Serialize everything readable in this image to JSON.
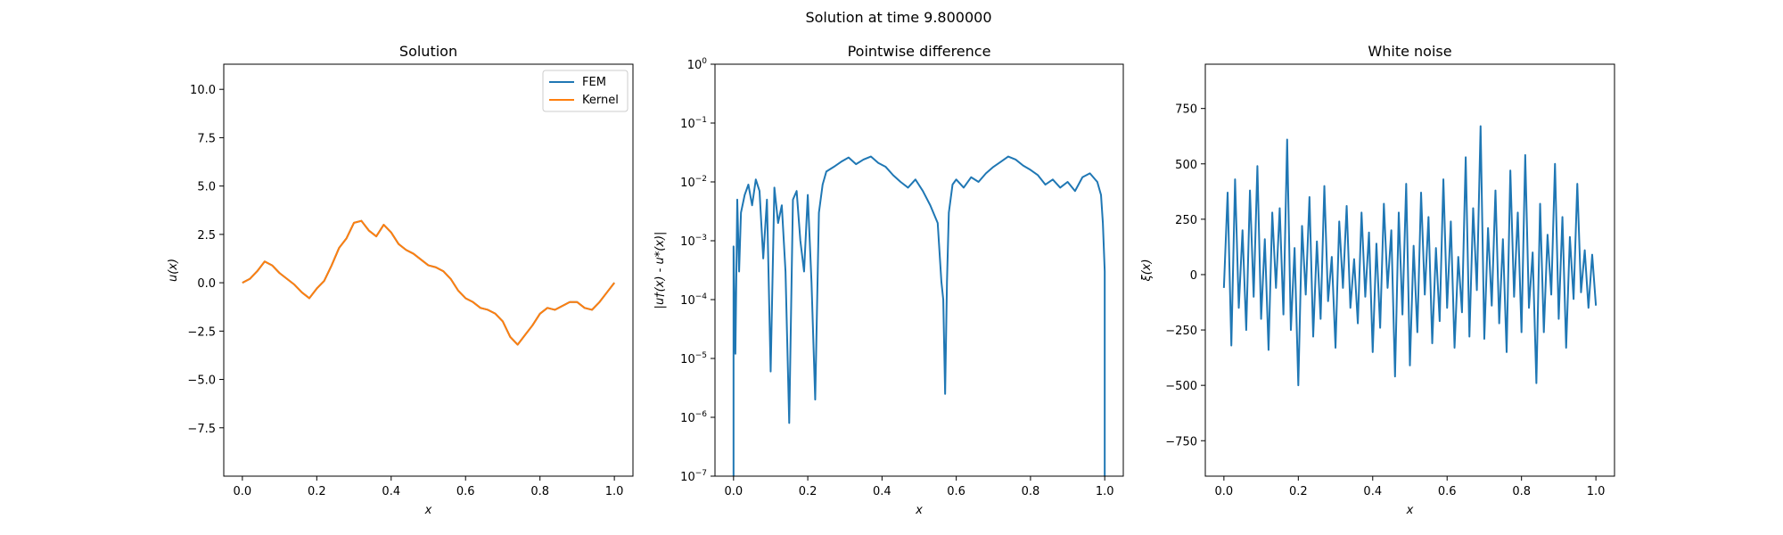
{
  "figure": {
    "suptitle": "Solution at time 9.800000"
  },
  "chart_data": [
    {
      "type": "line",
      "title": "Solution",
      "xlabel": "x",
      "ylabel": "u(x)",
      "xlim": [
        -0.05,
        1.05
      ],
      "ylim": [
        -10,
        11.3
      ],
      "xticks": [
        0.0,
        0.2,
        0.4,
        0.6,
        0.8,
        1.0
      ],
      "xticklabels": [
        "0.0",
        "0.2",
        "0.4",
        "0.6",
        "0.8",
        "1.0"
      ],
      "yticks": [
        -7.5,
        -5.0,
        -2.5,
        0.0,
        2.5,
        5.0,
        7.5,
        10.0
      ],
      "yticklabels": [
        "−7.5",
        "−5.0",
        "−2.5",
        "0.0",
        "2.5",
        "5.0",
        "7.5",
        "10.0"
      ],
      "legend": {
        "placement": "upper-right",
        "entries": [
          "FEM",
          "Kernel"
        ]
      },
      "series": [
        {
          "name": "FEM",
          "color": "#1f77b4",
          "x": [
            0.0,
            0.02,
            0.04,
            0.06,
            0.08,
            0.1,
            0.12,
            0.14,
            0.16,
            0.18,
            0.2,
            0.22,
            0.24,
            0.26,
            0.28,
            0.3,
            0.32,
            0.34,
            0.36,
            0.38,
            0.4,
            0.42,
            0.44,
            0.46,
            0.48,
            0.5,
            0.52,
            0.54,
            0.56,
            0.58,
            0.6,
            0.62,
            0.64,
            0.66,
            0.68,
            0.7,
            0.72,
            0.74,
            0.76,
            0.78,
            0.8,
            0.82,
            0.84,
            0.86,
            0.88,
            0.9,
            0.92,
            0.94,
            0.96,
            0.98,
            1.0
          ],
          "y": [
            0.0,
            0.2,
            0.6,
            1.1,
            0.9,
            0.5,
            0.2,
            -0.1,
            -0.5,
            -0.8,
            -0.3,
            0.1,
            0.9,
            1.8,
            2.3,
            3.1,
            3.2,
            2.7,
            2.4,
            3.0,
            2.6,
            2.0,
            1.7,
            1.5,
            1.2,
            0.9,
            0.8,
            0.6,
            0.2,
            -0.4,
            -0.8,
            -1.0,
            -1.3,
            -1.4,
            -1.6,
            -2.0,
            -2.8,
            -3.2,
            -2.7,
            -2.2,
            -1.6,
            -1.3,
            -1.4,
            -1.2,
            -1.0,
            -1.0,
            -1.3,
            -1.4,
            -1.0,
            -0.5,
            0.0
          ]
        },
        {
          "name": "Kernel",
          "color": "#ff7f0e",
          "x": [
            0.0,
            0.02,
            0.04,
            0.06,
            0.08,
            0.1,
            0.12,
            0.14,
            0.16,
            0.18,
            0.2,
            0.22,
            0.24,
            0.26,
            0.28,
            0.3,
            0.32,
            0.34,
            0.36,
            0.38,
            0.4,
            0.42,
            0.44,
            0.46,
            0.48,
            0.5,
            0.52,
            0.54,
            0.56,
            0.58,
            0.6,
            0.62,
            0.64,
            0.66,
            0.68,
            0.7,
            0.72,
            0.74,
            0.76,
            0.78,
            0.8,
            0.82,
            0.84,
            0.86,
            0.88,
            0.9,
            0.92,
            0.94,
            0.96,
            0.98,
            1.0
          ],
          "y": [
            0.0,
            0.2,
            0.6,
            1.1,
            0.9,
            0.5,
            0.2,
            -0.1,
            -0.5,
            -0.8,
            -0.3,
            0.1,
            0.9,
            1.8,
            2.3,
            3.1,
            3.2,
            2.7,
            2.4,
            3.0,
            2.6,
            2.0,
            1.7,
            1.5,
            1.2,
            0.9,
            0.8,
            0.6,
            0.2,
            -0.4,
            -0.8,
            -1.0,
            -1.3,
            -1.4,
            -1.6,
            -2.0,
            -2.8,
            -3.2,
            -2.7,
            -2.2,
            -1.6,
            -1.3,
            -1.4,
            -1.2,
            -1.0,
            -1.0,
            -1.3,
            -1.4,
            -1.0,
            -0.5,
            0.0
          ]
        }
      ]
    },
    {
      "type": "line",
      "title": "Pointwise difference",
      "xlabel": "x",
      "ylabel": "|u†(x) - u*(x)|",
      "yscale": "log",
      "xlim": [
        -0.05,
        1.05
      ],
      "ylim": [
        1e-07,
        1
      ],
      "xticks": [
        0.0,
        0.2,
        0.4,
        0.6,
        0.8,
        1.0
      ],
      "xticklabels": [
        "0.0",
        "0.2",
        "0.4",
        "0.6",
        "0.8",
        "1.0"
      ],
      "yticks": [
        1e-07,
        1e-06,
        1e-05,
        0.0001,
        0.001,
        0.01,
        0.1,
        1
      ],
      "yticklabels": [
        [
          "10",
          "−7"
        ],
        [
          "10",
          "−6"
        ],
        [
          "10",
          "−5"
        ],
        [
          "10",
          "−4"
        ],
        [
          "10",
          "−3"
        ],
        [
          "10",
          "−2"
        ],
        [
          "10",
          "−1"
        ],
        [
          "10",
          "0"
        ]
      ],
      "series": [
        {
          "color": "#1f77b4",
          "x": [
            0.0,
            0.0,
            0.005,
            0.01,
            0.015,
            0.02,
            0.03,
            0.04,
            0.05,
            0.06,
            0.07,
            0.08,
            0.09,
            0.1,
            0.11,
            0.12,
            0.13,
            0.14,
            0.15,
            0.16,
            0.17,
            0.18,
            0.19,
            0.2,
            0.21,
            0.22,
            0.23,
            0.24,
            0.25,
            0.27,
            0.29,
            0.31,
            0.33,
            0.35,
            0.37,
            0.39,
            0.41,
            0.43,
            0.45,
            0.47,
            0.49,
            0.51,
            0.53,
            0.55,
            0.56,
            0.565,
            0.57,
            0.575,
            0.58,
            0.59,
            0.6,
            0.62,
            0.64,
            0.66,
            0.68,
            0.7,
            0.72,
            0.74,
            0.76,
            0.78,
            0.8,
            0.82,
            0.84,
            0.86,
            0.88,
            0.9,
            0.92,
            0.94,
            0.96,
            0.98,
            0.99,
            0.995,
            1.0,
            1.0
          ],
          "y": [
            1e-07,
            0.0008,
            1.2e-05,
            0.005,
            0.0003,
            0.003,
            0.006,
            0.009,
            0.004,
            0.011,
            0.007,
            0.0005,
            0.005,
            6e-06,
            0.008,
            0.002,
            0.004,
            0.0003,
            8e-07,
            0.005,
            0.007,
            0.001,
            0.0003,
            0.006,
            0.0002,
            2e-06,
            0.003,
            0.009,
            0.015,
            0.018,
            0.022,
            0.026,
            0.02,
            0.024,
            0.027,
            0.021,
            0.018,
            0.013,
            0.01,
            0.008,
            0.011,
            0.007,
            0.004,
            0.002,
            0.0002,
            0.0001,
            2.5e-06,
            0.0002,
            0.003,
            0.009,
            0.011,
            0.008,
            0.012,
            0.01,
            0.014,
            0.018,
            0.022,
            0.027,
            0.024,
            0.019,
            0.016,
            0.013,
            0.009,
            0.011,
            0.008,
            0.01,
            0.007,
            0.012,
            0.014,
            0.01,
            0.006,
            0.002,
            0.0003,
            1e-07
          ]
        }
      ]
    },
    {
      "type": "line",
      "title": "White noise",
      "xlabel": "x",
      "ylabel": "ξ(x)",
      "xlim": [
        -0.05,
        1.05
      ],
      "ylim": [
        -910,
        950
      ],
      "xticks": [
        0.0,
        0.2,
        0.4,
        0.6,
        0.8,
        1.0
      ],
      "xticklabels": [
        "0.0",
        "0.2",
        "0.4",
        "0.6",
        "0.8",
        "1.0"
      ],
      "yticks": [
        -750,
        -500,
        -250,
        0,
        250,
        500,
        750
      ],
      "yticklabels": [
        "−750",
        "−500",
        "−250",
        "0",
        "250",
        "500",
        "750"
      ],
      "series": [
        {
          "color": "#1f77b4",
          "x": [
            0.0,
            0.01,
            0.02,
            0.03,
            0.04,
            0.05,
            0.06,
            0.07,
            0.08,
            0.09,
            0.1,
            0.11,
            0.12,
            0.13,
            0.14,
            0.15,
            0.16,
            0.17,
            0.18,
            0.19,
            0.2,
            0.21,
            0.22,
            0.23,
            0.24,
            0.25,
            0.26,
            0.27,
            0.28,
            0.29,
            0.3,
            0.31,
            0.32,
            0.33,
            0.34,
            0.35,
            0.36,
            0.37,
            0.38,
            0.39,
            0.4,
            0.41,
            0.42,
            0.43,
            0.44,
            0.45,
            0.46,
            0.47,
            0.48,
            0.49,
            0.5,
            0.51,
            0.52,
            0.53,
            0.54,
            0.55,
            0.56,
            0.57,
            0.58,
            0.59,
            0.6,
            0.61,
            0.62,
            0.63,
            0.64,
            0.65,
            0.66,
            0.67,
            0.68,
            0.69,
            0.7,
            0.71,
            0.72,
            0.73,
            0.74,
            0.75,
            0.76,
            0.77,
            0.78,
            0.79,
            0.8,
            0.81,
            0.82,
            0.83,
            0.84,
            0.85,
            0.86,
            0.87,
            0.88,
            0.89,
            0.9,
            0.91,
            0.92,
            0.93,
            0.94,
            0.95,
            0.96,
            0.97,
            0.98,
            0.99,
            1.0
          ],
          "y": [
            -60,
            370,
            -320,
            430,
            -150,
            200,
            -250,
            380,
            -100,
            490,
            -200,
            160,
            -340,
            280,
            -60,
            300,
            -180,
            610,
            -250,
            120,
            -500,
            220,
            -90,
            350,
            -280,
            150,
            -200,
            400,
            -120,
            80,
            -330,
            240,
            -60,
            310,
            -150,
            70,
            -220,
            280,
            -100,
            190,
            -350,
            140,
            -240,
            320,
            -60,
            200,
            -460,
            280,
            -180,
            410,
            -410,
            130,
            -260,
            370,
            -90,
            260,
            -310,
            120,
            -210,
            430,
            -150,
            240,
            -330,
            80,
            -170,
            530,
            -280,
            300,
            -70,
            670,
            -290,
            210,
            -140,
            380,
            -220,
            160,
            -350,
            470,
            -100,
            280,
            -260,
            540,
            -150,
            100,
            -490,
            320,
            -260,
            180,
            -90,
            500,
            -200,
            260,
            -330,
            170,
            -110,
            410,
            -80,
            110,
            -150,
            90,
            -140
          ]
        }
      ]
    }
  ]
}
